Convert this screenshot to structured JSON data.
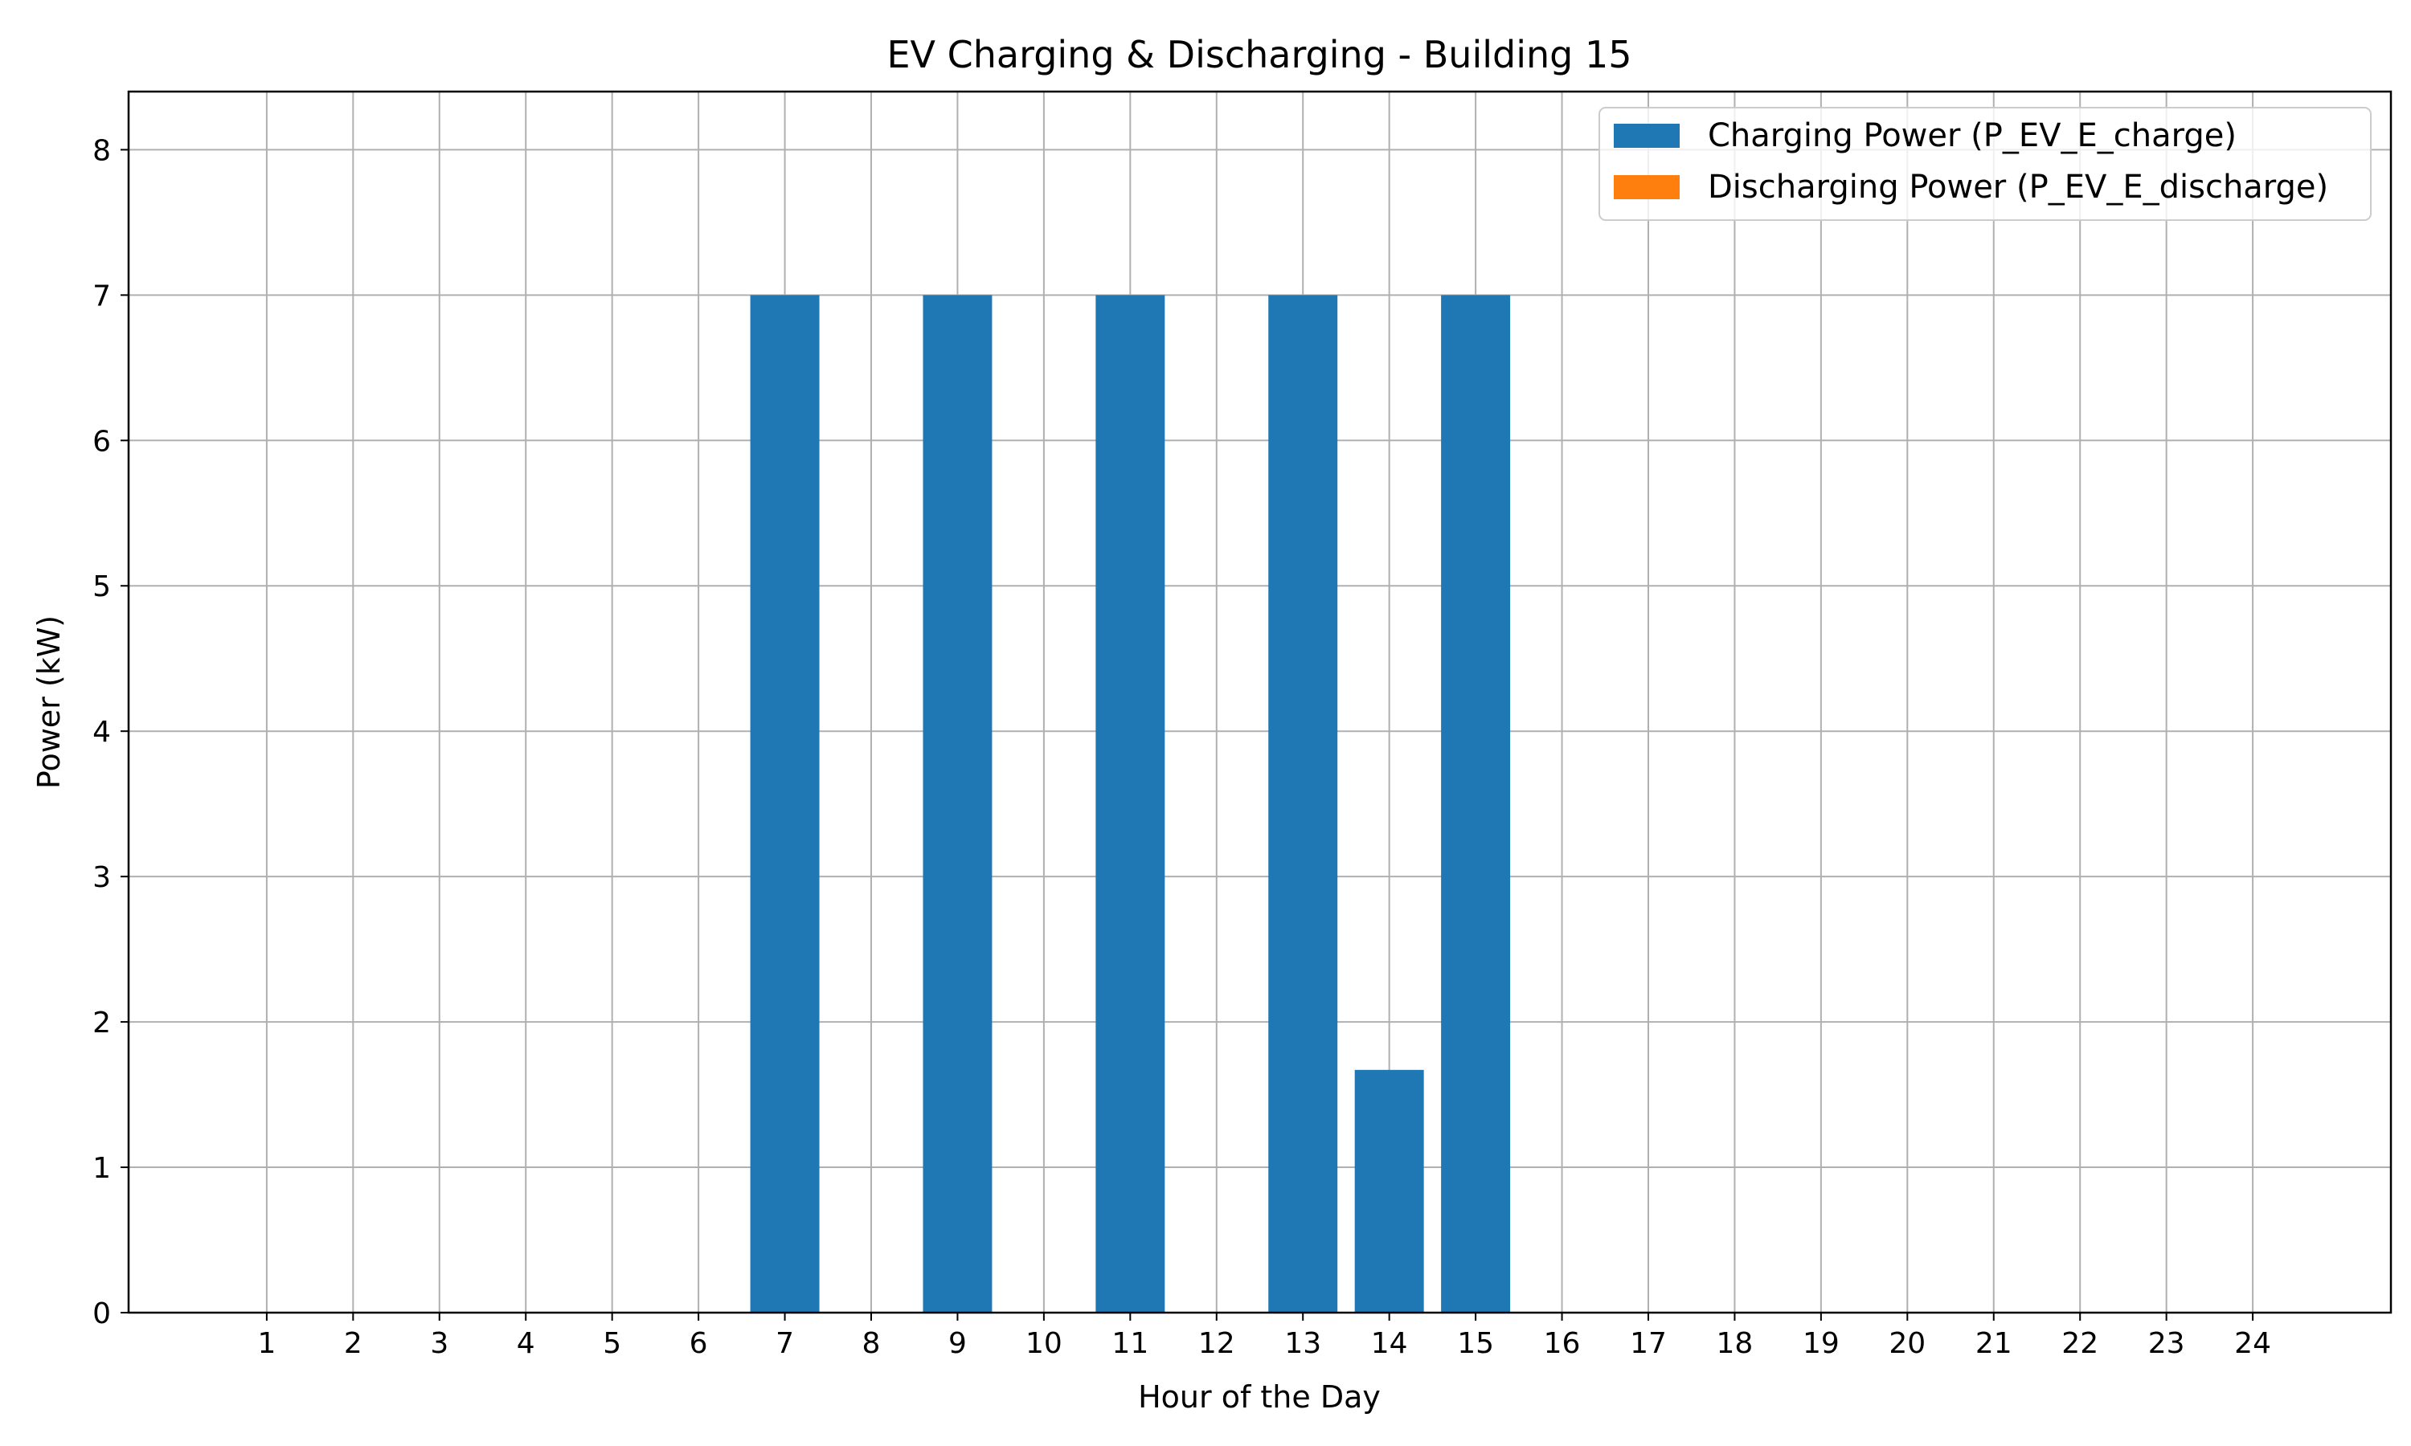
{
  "chart_data": {
    "type": "bar",
    "title": "EV Charging & Discharging - Building 15",
    "xlabel": "Hour of the Day",
    "ylabel": "Power (kW)",
    "categories": [
      "1",
      "2",
      "3",
      "4",
      "5",
      "6",
      "7",
      "8",
      "9",
      "10",
      "11",
      "12",
      "13",
      "14",
      "15",
      "16",
      "17",
      "18",
      "19",
      "20",
      "21",
      "22",
      "23",
      "24"
    ],
    "x": [
      1,
      2,
      3,
      4,
      5,
      6,
      7,
      8,
      9,
      10,
      11,
      12,
      13,
      14,
      15,
      16,
      17,
      18,
      19,
      20,
      21,
      22,
      23,
      24
    ],
    "xlim": [
      -0.6,
      25.6
    ],
    "ylim": [
      0,
      8.4
    ],
    "yticks": [
      0,
      1,
      2,
      3,
      4,
      5,
      6,
      7,
      8
    ],
    "grid": true,
    "legend_position": "top-right",
    "series": [
      {
        "name": "Charging Power (P_EV_E_charge)",
        "color": "#1f77b4",
        "values": [
          0,
          0,
          0,
          0,
          0,
          0,
          7,
          0,
          7,
          0,
          7,
          0,
          7,
          1.67,
          7,
          0,
          0,
          0,
          0,
          0,
          0,
          0,
          0,
          0
        ]
      },
      {
        "name": "Discharging Power (P_EV_E_discharge)",
        "color": "#ff7f0e",
        "values": [
          0,
          0,
          0,
          0,
          0,
          0,
          0,
          0,
          0,
          0,
          0,
          0,
          0,
          0,
          0,
          0,
          0,
          0,
          0,
          0,
          0,
          0,
          0,
          0
        ]
      }
    ]
  }
}
